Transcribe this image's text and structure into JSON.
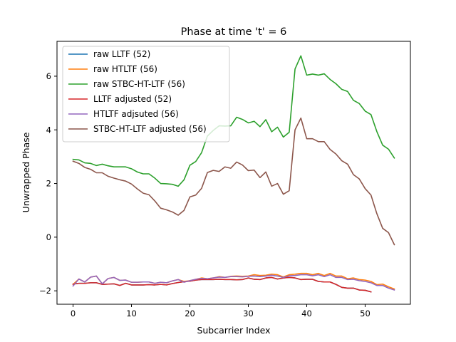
{
  "chart_data": {
    "type": "line",
    "title": "Phase at time 't' = 6",
    "xlabel": "Subcarrier Index",
    "ylabel": "Unwrapped Phase",
    "xlim": [
      -2.75,
      57.75
    ],
    "ylim": [
      -2.5,
      7.3
    ],
    "x_ticks": [
      0,
      10,
      20,
      30,
      40,
      50
    ],
    "y_ticks": [
      -2,
      0,
      2,
      4,
      6
    ],
    "grid": false,
    "legend_position": "top-left",
    "series": [
      {
        "name": "raw LLTF (52)",
        "color": "#1f77b4",
        "values": [
          -1.75,
          -1.72,
          -1.72,
          -1.7,
          -1.7,
          -1.76,
          -1.75,
          -1.74,
          -1.8,
          -1.72,
          -1.78,
          -1.78,
          -1.78,
          -1.77,
          -1.78,
          -1.76,
          -1.78,
          -1.73,
          -1.69,
          -1.66,
          -1.64,
          -1.6,
          -1.58,
          -1.58,
          -1.58,
          -1.57,
          -1.58,
          -1.58,
          -1.59,
          -1.58,
          -1.52,
          -1.57,
          -1.58,
          -1.52,
          -1.5,
          -1.56,
          -1.52,
          -1.5,
          -1.52,
          -1.58,
          -1.57,
          -1.57,
          -1.65,
          -1.67,
          -1.67,
          -1.76,
          -1.87,
          -1.9,
          -1.9,
          -1.97,
          -1.98,
          -2.04
        ]
      },
      {
        "name": "raw HTLTF (56)",
        "color": "#ff7f0e",
        "values": [
          -1.76,
          -1.56,
          -1.67,
          -1.49,
          -1.45,
          -1.74,
          -1.54,
          -1.5,
          -1.61,
          -1.6,
          -1.68,
          -1.68,
          -1.67,
          -1.67,
          -1.72,
          -1.68,
          -1.7,
          -1.63,
          -1.58,
          -1.65,
          -1.62,
          -1.57,
          -1.52,
          -1.55,
          -1.52,
          -1.47,
          -1.5,
          -1.46,
          -1.45,
          -1.46,
          -1.45,
          -1.4,
          -1.43,
          -1.42,
          -1.38,
          -1.4,
          -1.48,
          -1.4,
          -1.38,
          -1.35,
          -1.35,
          -1.4,
          -1.35,
          -1.43,
          -1.35,
          -1.45,
          -1.45,
          -1.55,
          -1.52,
          -1.58,
          -1.6,
          -1.65,
          -1.77,
          -1.75,
          -1.85,
          -1.93
        ]
      },
      {
        "name": "raw STBC-HT-LTF (56)",
        "color": "#2ca02c",
        "values": [
          2.9,
          2.88,
          2.77,
          2.75,
          2.67,
          2.72,
          2.66,
          2.62,
          2.62,
          2.62,
          2.55,
          2.43,
          2.36,
          2.36,
          2.2,
          2.0,
          1.99,
          1.97,
          1.9,
          2.14,
          2.68,
          2.82,
          3.15,
          3.77,
          3.98,
          4.15,
          4.14,
          4.15,
          4.47,
          4.39,
          4.26,
          4.32,
          4.12,
          4.38,
          3.93,
          4.1,
          3.73,
          3.91,
          6.27,
          6.76,
          6.04,
          6.08,
          6.04,
          6.09,
          5.88,
          5.72,
          5.51,
          5.43,
          5.1,
          4.98,
          4.7,
          4.57,
          3.94,
          3.43,
          3.28,
          2.95
        ]
      },
      {
        "name": "LLTF adjusted (52)",
        "color": "#d62728",
        "values": [
          -1.75,
          -1.72,
          -1.72,
          -1.7,
          -1.7,
          -1.76,
          -1.75,
          -1.74,
          -1.8,
          -1.72,
          -1.78,
          -1.78,
          -1.78,
          -1.77,
          -1.78,
          -1.76,
          -1.78,
          -1.73,
          -1.69,
          -1.66,
          -1.64,
          -1.6,
          -1.58,
          -1.58,
          -1.58,
          -1.57,
          -1.58,
          -1.58,
          -1.59,
          -1.58,
          -1.52,
          -1.57,
          -1.58,
          -1.52,
          -1.5,
          -1.56,
          -1.52,
          -1.5,
          -1.52,
          -1.58,
          -1.57,
          -1.57,
          -1.65,
          -1.67,
          -1.67,
          -1.76,
          -1.87,
          -1.9,
          -1.9,
          -1.97,
          -1.98,
          -2.04
        ]
      },
      {
        "name": "HTLTF adjsuted (56)",
        "color": "#9467bd",
        "values": [
          -1.82,
          -1.56,
          -1.67,
          -1.49,
          -1.45,
          -1.74,
          -1.54,
          -1.5,
          -1.61,
          -1.6,
          -1.68,
          -1.68,
          -1.67,
          -1.67,
          -1.72,
          -1.68,
          -1.7,
          -1.63,
          -1.58,
          -1.68,
          -1.62,
          -1.57,
          -1.54,
          -1.55,
          -1.52,
          -1.49,
          -1.5,
          -1.47,
          -1.47,
          -1.48,
          -1.46,
          -1.45,
          -1.47,
          -1.45,
          -1.42,
          -1.45,
          -1.5,
          -1.44,
          -1.43,
          -1.4,
          -1.4,
          -1.44,
          -1.4,
          -1.47,
          -1.4,
          -1.5,
          -1.5,
          -1.58,
          -1.57,
          -1.62,
          -1.65,
          -1.7,
          -1.8,
          -1.8,
          -1.9,
          -1.97
        ]
      },
      {
        "name": "STBC-HT-LTF adjusted (56)",
        "color": "#8c564b",
        "values": [
          2.83,
          2.75,
          2.6,
          2.53,
          2.4,
          2.4,
          2.27,
          2.2,
          2.14,
          2.09,
          1.98,
          1.8,
          1.64,
          1.58,
          1.35,
          1.08,
          1.02,
          0.94,
          0.82,
          1.0,
          1.5,
          1.57,
          1.82,
          2.41,
          2.49,
          2.45,
          2.62,
          2.57,
          2.8,
          2.69,
          2.48,
          2.5,
          2.22,
          2.43,
          1.9,
          2.0,
          1.6,
          1.73,
          4.0,
          4.44,
          3.67,
          3.67,
          3.56,
          3.56,
          3.27,
          3.1,
          2.85,
          2.72,
          2.33,
          2.17,
          1.81,
          1.57,
          0.88,
          0.33,
          0.17,
          -0.28
        ]
      }
    ]
  }
}
